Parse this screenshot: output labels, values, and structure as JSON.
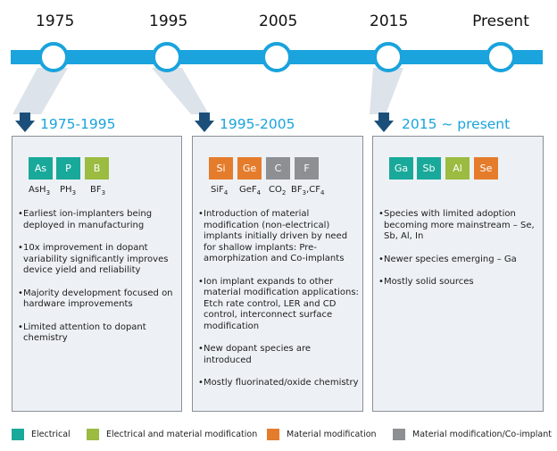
{
  "timeline": {
    "years": [
      "1975",
      "1995",
      "2005",
      "2015",
      "Present"
    ]
  },
  "colors": {
    "accent": "#1aa3dc",
    "arrow": "#1b4f7a",
    "electrical": "#19a99a",
    "electrical_material": "#9bbb41",
    "material": "#e57c2c",
    "material_coimplant": "#8d8f93"
  },
  "periods": [
    {
      "title": "1975-1995",
      "species": [
        {
          "symbol": "As",
          "type": "electrical"
        },
        {
          "symbol": "P",
          "type": "electrical"
        },
        {
          "symbol": "B",
          "type": "electrical_material"
        }
      ],
      "formulas": [
        {
          "main": "AsH",
          "sub": "3"
        },
        {
          "main": "PH",
          "sub": "3"
        },
        {
          "main": "BF",
          "sub": "3"
        }
      ],
      "bullets": [
        "Earliest ion-implanters being deployed in manufacturing",
        "10x improvement in dopant variability significantly improves device yield and reliability",
        "Majority development focused on hardware improvements",
        "Limited attention to dopant chemistry"
      ]
    },
    {
      "title": "1995-2005",
      "species": [
        {
          "symbol": "Si",
          "type": "material"
        },
        {
          "symbol": "Ge",
          "type": "material"
        },
        {
          "symbol": "C",
          "type": "material_coimplant"
        },
        {
          "symbol": "F",
          "type": "material_coimplant"
        }
      ],
      "formulas": [
        {
          "main": "SiF",
          "sub": "4"
        },
        {
          "main": "GeF",
          "sub": "4"
        },
        {
          "main": "CO",
          "sub": "2"
        },
        {
          "main": "BF",
          "sub": "3",
          "main2": ",CF",
          "sub2": "4"
        }
      ],
      "bullets": [
        "Introduction of material modification (non-electrical) implants initially driven by need for shallow implants: Pre-amorphization and Co-implants",
        "Ion implant expands to other material modification applications: Etch rate control, LER and CD control, interconnect surface modification",
        "New dopant species are introduced",
        "Mostly fluorinated/oxide chemistry"
      ]
    },
    {
      "title": "2015 ~ present",
      "species": [
        {
          "symbol": "Ga",
          "type": "electrical"
        },
        {
          "symbol": "Sb",
          "type": "electrical"
        },
        {
          "symbol": "Al",
          "type": "electrical_material"
        },
        {
          "symbol": "Se",
          "type": "material"
        }
      ],
      "formulas": [],
      "bullets": [
        "Species with limited adoption becoming more mainstream – Se, Sb, Al, In",
        "Newer species emerging – Ga",
        "Mostly solid sources"
      ]
    }
  ],
  "legend": [
    {
      "label": "Electrical",
      "type": "electrical"
    },
    {
      "label": "Electrical and material modification",
      "type": "electrical_material"
    },
    {
      "label": "Material modification",
      "type": "material"
    },
    {
      "label": "Material modification/Co-implant",
      "type": "material_coimplant"
    }
  ]
}
